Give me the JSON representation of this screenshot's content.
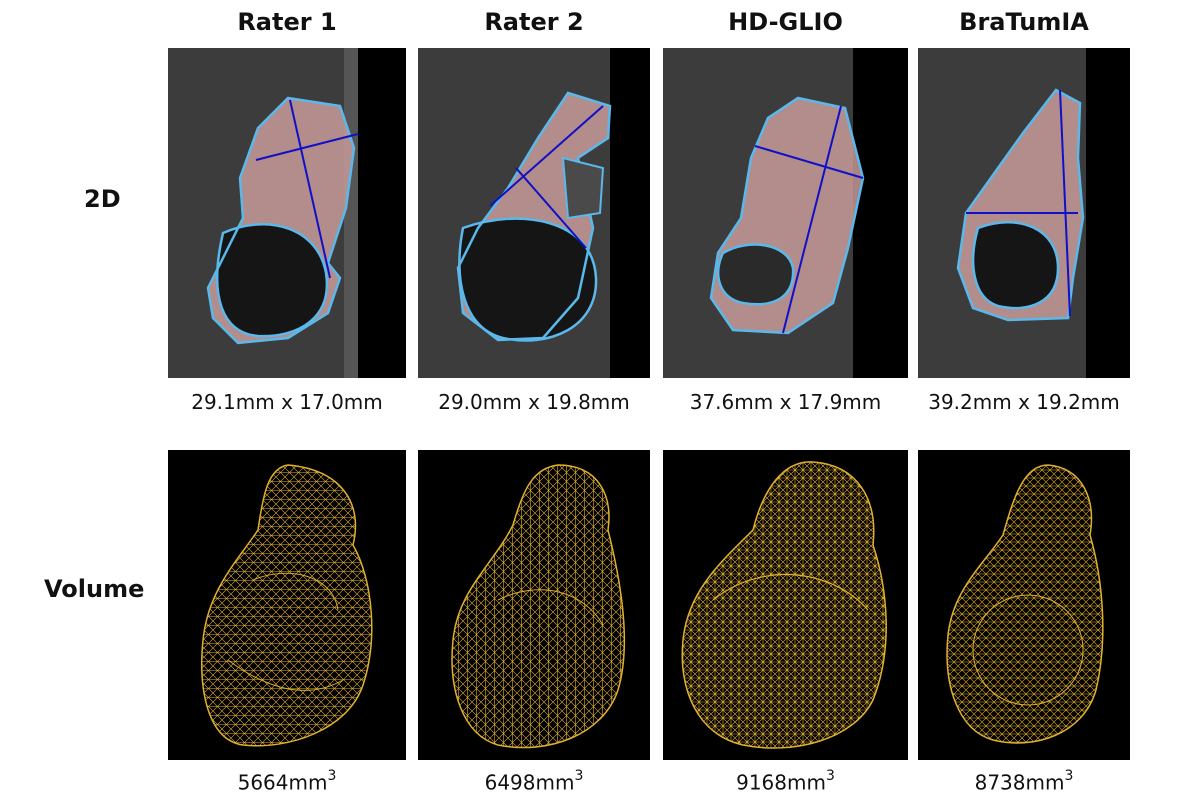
{
  "columns": [
    {
      "title": "Rater 1",
      "measurement": "29.1mm x 17.0mm",
      "volume_value": "5664mm",
      "volume_exp": "3"
    },
    {
      "title": "Rater 2",
      "measurement": "29.0mm x 19.8mm",
      "volume_value": "6498mm",
      "volume_exp": "3"
    },
    {
      "title": "HD-GLIO",
      "measurement": "37.6mm x 17.9mm",
      "volume_value": "9168mm",
      "volume_exp": "3"
    },
    {
      "title": "BraTumIA",
      "measurement": "39.2mm x 19.2mm",
      "volume_value": "8738mm",
      "volume_exp": "3"
    }
  ],
  "rows": {
    "slice_label": "2D",
    "volume_label": "Volume"
  },
  "colors": {
    "contour": "#5ab8ea",
    "diameter_line": "#1010c8",
    "tumor_fill": "#c89a9a",
    "mesh": "#e0b030",
    "scan_bg": "#3a3a3a"
  }
}
